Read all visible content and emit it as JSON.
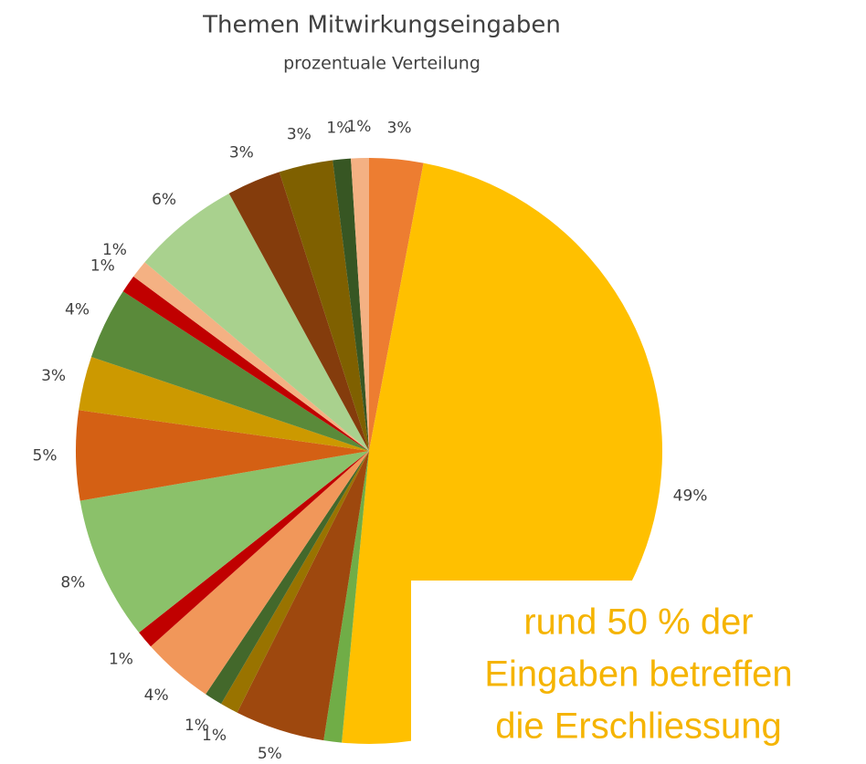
{
  "chart_data": {
    "type": "pie",
    "title": "Themen Mitwirkungseingaben",
    "subtitle": "prozentuale Verteilung",
    "values": [
      3,
      49,
      1,
      5,
      1,
      1,
      4,
      1,
      8,
      5,
      3,
      4,
      1,
      1,
      6,
      3,
      3,
      1,
      1
    ],
    "value_labels": [
      "3%",
      "49%",
      null,
      "5%",
      "1%",
      "1%",
      "4%",
      "1%",
      "8%",
      "5%",
      "3%",
      "4%",
      "1%",
      "1%",
      "6%",
      "3%",
      "3%",
      "1%",
      "1%"
    ],
    "colors": [
      "#ED7D31",
      "#FFC000",
      "#70AD47",
      "#9E480E",
      "#997300",
      "#43682B",
      "#F1975A",
      "#C00000",
      "#8BC16A",
      "#D46014",
      "#CC9900",
      "#5A8A3A",
      "#C00000",
      "#F4B183",
      "#A9D18E",
      "#843C0C",
      "#7F6000",
      "#375623",
      "#F4B183"
    ],
    "annotation": [
      "rund 50 % der",
      "Eingaben betreffen",
      "die Erschliessung"
    ]
  }
}
